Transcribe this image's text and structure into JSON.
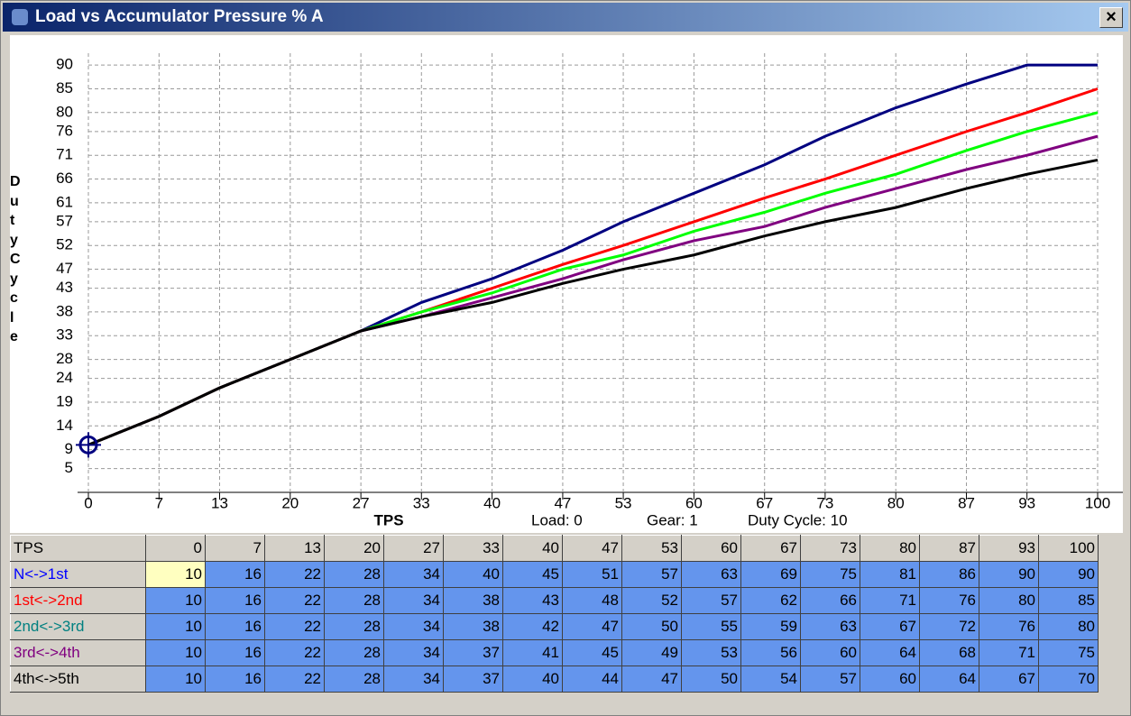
{
  "window": {
    "title": "Load vs Accumulator Pressure % A",
    "close": "×"
  },
  "status": {
    "load": "Load: 0",
    "gear": "Gear: 1",
    "duty": "Duty Cycle: 10"
  },
  "chart_data": {
    "type": "line",
    "y_label": "Duty Cycle",
    "x_label": "TPS",
    "x": [
      0,
      7,
      13,
      20,
      27,
      33,
      40,
      47,
      53,
      60,
      67,
      73,
      80,
      87,
      93,
      100
    ],
    "xlim": [
      0,
      100
    ],
    "xticks": [
      0,
      7,
      13,
      20,
      27,
      33,
      40,
      47,
      53,
      60,
      67,
      73,
      80,
      87,
      93,
      100
    ],
    "ylim": [
      0,
      92.5
    ],
    "yticks": [
      5,
      9,
      14,
      19,
      24,
      28,
      33,
      38,
      43,
      47,
      52,
      57,
      61,
      66,
      71,
      76,
      80,
      85,
      90
    ],
    "grid": true,
    "series": [
      {
        "name": "N<->1st",
        "color": "#000080",
        "label_color": "#0000ff",
        "values": [
          10,
          16,
          22,
          28,
          34,
          40,
          45,
          51,
          57,
          63,
          69,
          75,
          81,
          86,
          90,
          90
        ]
      },
      {
        "name": "1st<->2nd",
        "color": "#ff0000",
        "label_color": "#ff0000",
        "values": [
          10,
          16,
          22,
          28,
          34,
          38,
          43,
          48,
          52,
          57,
          62,
          66,
          71,
          76,
          80,
          85
        ]
      },
      {
        "name": "2nd<->3rd",
        "color": "#00ff00",
        "label_color": "#008080",
        "values": [
          10,
          16,
          22,
          28,
          34,
          38,
          42,
          47,
          50,
          55,
          59,
          63,
          67,
          72,
          76,
          80
        ]
      },
      {
        "name": "3rd<->4th",
        "color": "#800080",
        "label_color": "#800080",
        "values": [
          10,
          16,
          22,
          28,
          34,
          37,
          41,
          45,
          49,
          53,
          56,
          60,
          64,
          68,
          71,
          75
        ]
      },
      {
        "name": "4th<->5th",
        "color": "#000000",
        "label_color": "#000000",
        "values": [
          10,
          16,
          22,
          28,
          34,
          37,
          40,
          44,
          47,
          50,
          54,
          57,
          60,
          64,
          67,
          70
        ]
      }
    ]
  }
}
